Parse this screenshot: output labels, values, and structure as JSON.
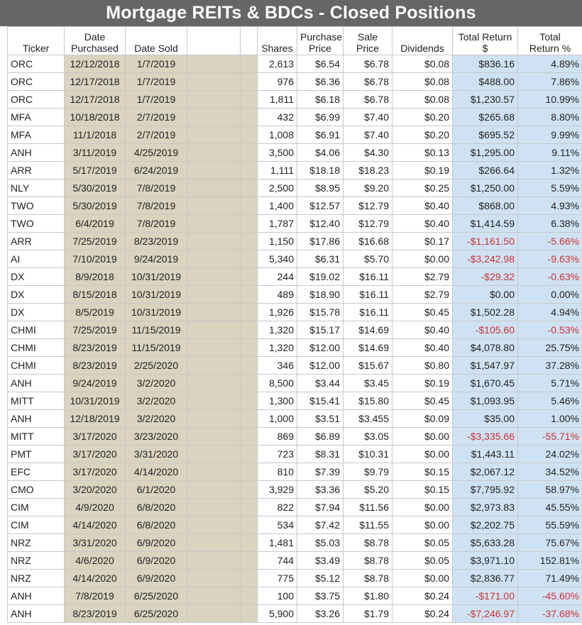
{
  "title": "Mortgage REITs & BDCs - Closed Positions",
  "colors": {
    "title_bg": "#666666",
    "tan": "#d9d3bf",
    "blue": "#cfe2f3",
    "negative": "#cc3333"
  },
  "headers": {
    "ticker": "Ticker",
    "date_purchased_1": "Date",
    "date_purchased_2": "Purchased",
    "date_sold": "Date Sold",
    "shares": "Shares",
    "purchase_price_1": "Purchase",
    "purchase_price_2": "Price",
    "sale_price_1": "Sale",
    "sale_price_2": "Price",
    "dividends": "Dividends",
    "total_return_usd_1": "Total Return",
    "total_return_usd_2": "$",
    "total_return_pct_1": "Total",
    "total_return_pct_2": "Return %"
  },
  "rows": [
    {
      "ticker": "ORC",
      "purchased": "12/12/2018",
      "sold": "1/7/2019",
      "shares": "2,613",
      "purchase_price": "$6.54",
      "sale_price": "$6.78",
      "dividends": "$0.08",
      "total_return": "$836.16",
      "return_pct": "4.89%"
    },
    {
      "ticker": "ORC",
      "purchased": "12/17/2018",
      "sold": "1/7/2019",
      "shares": "976",
      "purchase_price": "$6.36",
      "sale_price": "$6.78",
      "dividends": "$0.08",
      "total_return": "$488.00",
      "return_pct": "7.86%"
    },
    {
      "ticker": "ORC",
      "purchased": "12/17/2018",
      "sold": "1/7/2019",
      "shares": "1,811",
      "purchase_price": "$6.18",
      "sale_price": "$6.78",
      "dividends": "$0.08",
      "total_return": "$1,230.57",
      "return_pct": "10.99%"
    },
    {
      "ticker": "MFA",
      "purchased": "10/18/2018",
      "sold": "2/7/2019",
      "shares": "432",
      "purchase_price": "$6.99",
      "sale_price": "$7.40",
      "dividends": "$0.20",
      "total_return": "$265.68",
      "return_pct": "8.80%"
    },
    {
      "ticker": "MFA",
      "purchased": "11/1/2018",
      "sold": "2/7/2019",
      "shares": "1,008",
      "purchase_price": "$6.91",
      "sale_price": "$7.40",
      "dividends": "$0.20",
      "total_return": "$695.52",
      "return_pct": "9.99%"
    },
    {
      "ticker": "ANH",
      "purchased": "3/11/2019",
      "sold": "4/25/2019",
      "shares": "3,500",
      "purchase_price": "$4.06",
      "sale_price": "$4.30",
      "dividends": "$0.13",
      "total_return": "$1,295.00",
      "return_pct": "9.11%"
    },
    {
      "ticker": "ARR",
      "purchased": "5/17/2019",
      "sold": "6/24/2019",
      "shares": "1,111",
      "purchase_price": "$18.18",
      "sale_price": "$18.23",
      "dividends": "$0.19",
      "total_return": "$266.64",
      "return_pct": "1.32%"
    },
    {
      "ticker": "NLY",
      "purchased": "5/30/2019",
      "sold": "7/8/2019",
      "shares": "2,500",
      "purchase_price": "$8.95",
      "sale_price": "$9.20",
      "dividends": "$0.25",
      "total_return": "$1,250.00",
      "return_pct": "5.59%"
    },
    {
      "ticker": "TWO",
      "purchased": "5/30/2019",
      "sold": "7/8/2019",
      "shares": "1,400",
      "purchase_price": "$12.57",
      "sale_price": "$12.79",
      "dividends": "$0.40",
      "total_return": "$868.00",
      "return_pct": "4.93%"
    },
    {
      "ticker": "TWO",
      "purchased": "6/4/2019",
      "sold": "7/8/2019",
      "shares": "1,787",
      "purchase_price": "$12.40",
      "sale_price": "$12.79",
      "dividends": "$0.40",
      "total_return": "$1,414.59",
      "return_pct": "6.38%"
    },
    {
      "ticker": "ARR",
      "purchased": "7/25/2019",
      "sold": "8/23/2019",
      "shares": "1,150",
      "purchase_price": "$17.86",
      "sale_price": "$16.68",
      "dividends": "$0.17",
      "total_return": "-$1,161.50",
      "return_pct": "-5.66%",
      "negative": true
    },
    {
      "ticker": "AI",
      "purchased": "7/10/2019",
      "sold": "9/24/2019",
      "shares": "5,340",
      "purchase_price": "$6.31",
      "sale_price": "$5.70",
      "dividends": "$0.00",
      "total_return": "-$3,242.98",
      "return_pct": "-9.63%",
      "negative": true
    },
    {
      "ticker": "DX",
      "purchased": "8/9/2018",
      "sold": "10/31/2019",
      "shares": "244",
      "purchase_price": "$19.02",
      "sale_price": "$16.11",
      "dividends": "$2.79",
      "total_return": "-$29.32",
      "return_pct": "-0.63%",
      "negative": true
    },
    {
      "ticker": "DX",
      "purchased": "8/15/2018",
      "sold": "10/31/2019",
      "shares": "489",
      "purchase_price": "$18.90",
      "sale_price": "$16.11",
      "dividends": "$2.79",
      "total_return": "$0.00",
      "return_pct": "0.00%"
    },
    {
      "ticker": "DX",
      "purchased": "8/5/2019",
      "sold": "10/31/2019",
      "shares": "1,926",
      "purchase_price": "$15.78",
      "sale_price": "$16.11",
      "dividends": "$0.45",
      "total_return": "$1,502.28",
      "return_pct": "4.94%"
    },
    {
      "ticker": "CHMI",
      "purchased": "7/25/2019",
      "sold": "11/15/2019",
      "shares": "1,320",
      "purchase_price": "$15.17",
      "sale_price": "$14.69",
      "dividends": "$0.40",
      "total_return": "-$105.60",
      "return_pct": "-0.53%",
      "negative": true
    },
    {
      "ticker": "CHMI",
      "purchased": "8/23/2019",
      "sold": "11/15/2019",
      "shares": "1,320",
      "purchase_price": "$12.00",
      "sale_price": "$14.69",
      "dividends": "$0.40",
      "total_return": "$4,078.80",
      "return_pct": "25.75%"
    },
    {
      "ticker": "CHMI",
      "purchased": "8/23/2019",
      "sold": "2/25/2020",
      "shares": "346",
      "purchase_price": "$12.00",
      "sale_price": "$15.67",
      "dividends": "$0.80",
      "total_return": "$1,547.97",
      "return_pct": "37.28%"
    },
    {
      "ticker": "ANH",
      "purchased": "9/24/2019",
      "sold": "3/2/2020",
      "shares": "8,500",
      "purchase_price": "$3.44",
      "sale_price": "$3.45",
      "dividends": "$0.19",
      "total_return": "$1,670.45",
      "return_pct": "5.71%"
    },
    {
      "ticker": "MITT",
      "purchased": "10/31/2019",
      "sold": "3/2/2020",
      "shares": "1,300",
      "purchase_price": "$15.41",
      "sale_price": "$15.80",
      "dividends": "$0.45",
      "total_return": "$1,093.95",
      "return_pct": "5.46%"
    },
    {
      "ticker": "ANH",
      "purchased": "12/18/2019",
      "sold": "3/2/2020",
      "shares": "1,000",
      "purchase_price": "$3.51",
      "sale_price": "$3.455",
      "dividends": "$0.09",
      "total_return": "$35.00",
      "return_pct": "1.00%"
    },
    {
      "ticker": "MITT",
      "purchased": "3/17/2020",
      "sold": "3/23/2020",
      "shares": "869",
      "purchase_price": "$6.89",
      "sale_price": "$3.05",
      "dividends": "$0.00",
      "total_return": "-$3,335.66",
      "return_pct": "-55.71%",
      "negative": true
    },
    {
      "ticker": "PMT",
      "purchased": "3/17/2020",
      "sold": "3/31/2020",
      "shares": "723",
      "purchase_price": "$8.31",
      "sale_price": "$10.31",
      "dividends": "$0.00",
      "total_return": "$1,443.11",
      "return_pct": "24.02%"
    },
    {
      "ticker": "EFC",
      "purchased": "3/17/2020",
      "sold": "4/14/2020",
      "shares": "810",
      "purchase_price": "$7.39",
      "sale_price": "$9.79",
      "dividends": "$0.15",
      "total_return": "$2,067.12",
      "return_pct": "34.52%"
    },
    {
      "ticker": "CMO",
      "purchased": "3/20/2020",
      "sold": "6/1/2020",
      "shares": "3,929",
      "purchase_price": "$3.36",
      "sale_price": "$5.20",
      "dividends": "$0.15",
      "total_return": "$7,795.92",
      "return_pct": "58.97%"
    },
    {
      "ticker": "CIM",
      "purchased": "4/9/2020",
      "sold": "6/8/2020",
      "shares": "822",
      "purchase_price": "$7.94",
      "sale_price": "$11.56",
      "dividends": "$0.00",
      "total_return": "$2,973.83",
      "return_pct": "45.55%"
    },
    {
      "ticker": "CIM",
      "purchased": "4/14/2020",
      "sold": "6/8/2020",
      "shares": "534",
      "purchase_price": "$7.42",
      "sale_price": "$11.55",
      "dividends": "$0.00",
      "total_return": "$2,202.75",
      "return_pct": "55.59%"
    },
    {
      "ticker": "NRZ",
      "purchased": "3/31/2020",
      "sold": "6/9/2020",
      "shares": "1,481",
      "purchase_price": "$5.03",
      "sale_price": "$8.78",
      "dividends": "$0.05",
      "total_return": "$5,633.28",
      "return_pct": "75.67%"
    },
    {
      "ticker": "NRZ",
      "purchased": "4/6/2020",
      "sold": "6/9/2020",
      "shares": "744",
      "purchase_price": "$3.49",
      "sale_price": "$8.78",
      "dividends": "$0.05",
      "total_return": "$3,971.10",
      "return_pct": "152.81%"
    },
    {
      "ticker": "NRZ",
      "purchased": "4/14/2020",
      "sold": "6/9/2020",
      "shares": "775",
      "purchase_price": "$5.12",
      "sale_price": "$8.78",
      "dividends": "$0.00",
      "total_return": "$2,836.77",
      "return_pct": "71.49%"
    },
    {
      "ticker": "ANH",
      "purchased": "7/8/2019",
      "sold": "6/25/2020",
      "shares": "100",
      "purchase_price": "$3.75",
      "sale_price": "$1.80",
      "dividends": "$0.24",
      "total_return": "-$171.00",
      "return_pct": "-45.60%",
      "negative": true
    },
    {
      "ticker": "ANH",
      "purchased": "8/23/2019",
      "sold": "6/25/2020",
      "shares": "5,900",
      "purchase_price": "$3.26",
      "sale_price": "$1.79",
      "dividends": "$0.24",
      "total_return": "-$7,246.97",
      "return_pct": "-37.68%",
      "negative": true
    }
  ]
}
